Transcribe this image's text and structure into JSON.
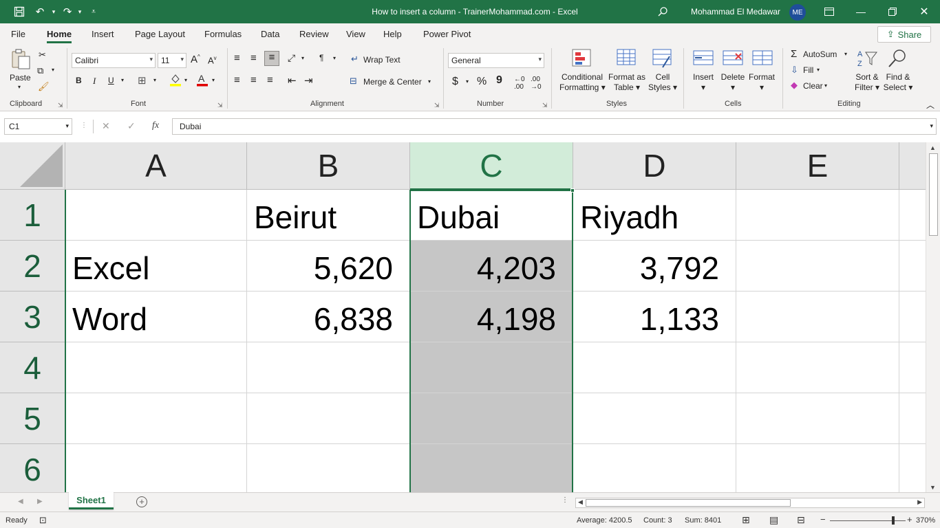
{
  "titlebar": {
    "title": "How to insert a column - TrainerMohammad.com  -  Excel",
    "user_name": "Mohammad El Medawar",
    "user_initials": "ME"
  },
  "tabs": [
    {
      "label": "File"
    },
    {
      "label": "Home"
    },
    {
      "label": "Insert"
    },
    {
      "label": "Page Layout"
    },
    {
      "label": "Formulas"
    },
    {
      "label": "Data"
    },
    {
      "label": "Review"
    },
    {
      "label": "View"
    },
    {
      "label": "Help"
    },
    {
      "label": "Power Pivot"
    }
  ],
  "share_label": "Share",
  "ribbon": {
    "clipboard": {
      "label": "Clipboard",
      "paste": "Paste"
    },
    "font": {
      "label": "Font",
      "font_name": "Calibri",
      "font_size": "11",
      "bold": "B",
      "italic": "I",
      "underline": "U"
    },
    "alignment": {
      "label": "Alignment",
      "wrap_text": "Wrap Text",
      "merge_center": "Merge & Center"
    },
    "number": {
      "label": "Number",
      "format": "General",
      "currency": "$",
      "percent": "%",
      "comma": "9"
    },
    "styles": {
      "label": "Styles",
      "conditional_1": "Conditional",
      "conditional_2": "Formatting",
      "format_table_1": "Format as",
      "format_table_2": "Table",
      "cell_styles_1": "Cell",
      "cell_styles_2": "Styles"
    },
    "cells": {
      "label": "Cells",
      "insert": "Insert",
      "delete": "Delete",
      "format": "Format"
    },
    "editing": {
      "label": "Editing",
      "autosum": "AutoSum",
      "fill": "Fill",
      "clear": "Clear",
      "sort_1": "Sort &",
      "sort_2": "Filter",
      "find_1": "Find &",
      "find_2": "Select"
    }
  },
  "formula_bar": {
    "name_box": "C1",
    "fx": "fx",
    "value": "Dubai"
  },
  "grid": {
    "columns": [
      "A",
      "B",
      "C",
      "D",
      "E"
    ],
    "rows": [
      "1",
      "2",
      "3",
      "4",
      "5",
      "6"
    ],
    "cells": {
      "B1": "Beirut",
      "C1": "Dubai",
      "D1": "Riyadh",
      "A2": "Excel",
      "B2": "5,620",
      "C2": "4,203",
      "D2": "3,792",
      "A3": "Word",
      "B3": "6,838",
      "C3": "4,198",
      "D3": "1,133"
    },
    "selected_column": "C",
    "active_cell": "C1"
  },
  "sheets": [
    {
      "name": "Sheet1",
      "active": true
    }
  ],
  "statusbar": {
    "ready": "Ready",
    "average": "Average: 4200.5",
    "count": "Count: 3",
    "sum": "Sum: 8401",
    "zoom": "370%"
  }
}
